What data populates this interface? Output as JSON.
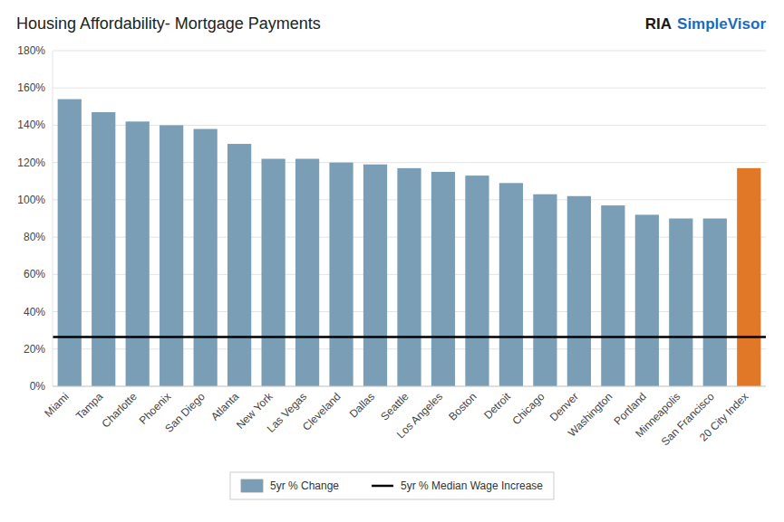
{
  "chart_data": {
    "type": "bar",
    "title": "Housing Affordability- Mortgage Payments",
    "categories": [
      "Miami",
      "Tampa",
      "Charlotte",
      "Phoenix",
      "San Diego",
      "Atlanta",
      "New York",
      "Las Vegas",
      "Cleveland",
      "Dallas",
      "Seattle",
      "Los Angeles",
      "Boston",
      "Detroit",
      "Chicago",
      "Denver",
      "Washington",
      "Portland",
      "Minneapolis",
      "San Francisco",
      "20 City Index"
    ],
    "series": [
      {
        "name": "5yr % Change",
        "values": [
          1.54,
          1.47,
          1.42,
          1.4,
          1.38,
          1.3,
          1.22,
          1.22,
          1.2,
          1.19,
          1.17,
          1.15,
          1.13,
          1.09,
          1.03,
          1.02,
          0.97,
          0.92,
          0.9,
          0.9,
          1.17
        ],
        "colors": [
          "#7a9eb5",
          "#7a9eb5",
          "#7a9eb5",
          "#7a9eb5",
          "#7a9eb5",
          "#7a9eb5",
          "#7a9eb5",
          "#7a9eb5",
          "#7a9eb5",
          "#7a9eb5",
          "#7a9eb5",
          "#7a9eb5",
          "#7a9eb5",
          "#7a9eb5",
          "#7a9eb5",
          "#7a9eb5",
          "#7a9eb5",
          "#7a9eb5",
          "#7a9eb5",
          "#7a9eb5",
          "#e07828"
        ]
      }
    ],
    "reference_line": {
      "name": "5yr % Median Wage Increase",
      "value": 0.265,
      "color": "#000000"
    },
    "ylim": [
      0,
      1.8
    ],
    "yticks": [
      {
        "value": 0,
        "label": "0%"
      },
      {
        "value": 0.2,
        "label": "20%"
      },
      {
        "value": 0.4,
        "label": "40%"
      },
      {
        "value": 0.6,
        "label": "60%"
      },
      {
        "value": 0.8,
        "label": "80%"
      },
      {
        "value": 1.0,
        "label": "100%"
      },
      {
        "value": 1.2,
        "label": "120%"
      },
      {
        "value": 1.4,
        "label": "140%"
      },
      {
        "value": 1.6,
        "label": "160%"
      },
      {
        "value": 1.8,
        "label": "180%"
      }
    ],
    "grid": true,
    "legend": "bottom",
    "annotations": [
      {
        "text": "RIA",
        "color": "#1a1a1a"
      },
      {
        "text": "SimpleVisor",
        "color": "#1a6bbf"
      }
    ]
  }
}
